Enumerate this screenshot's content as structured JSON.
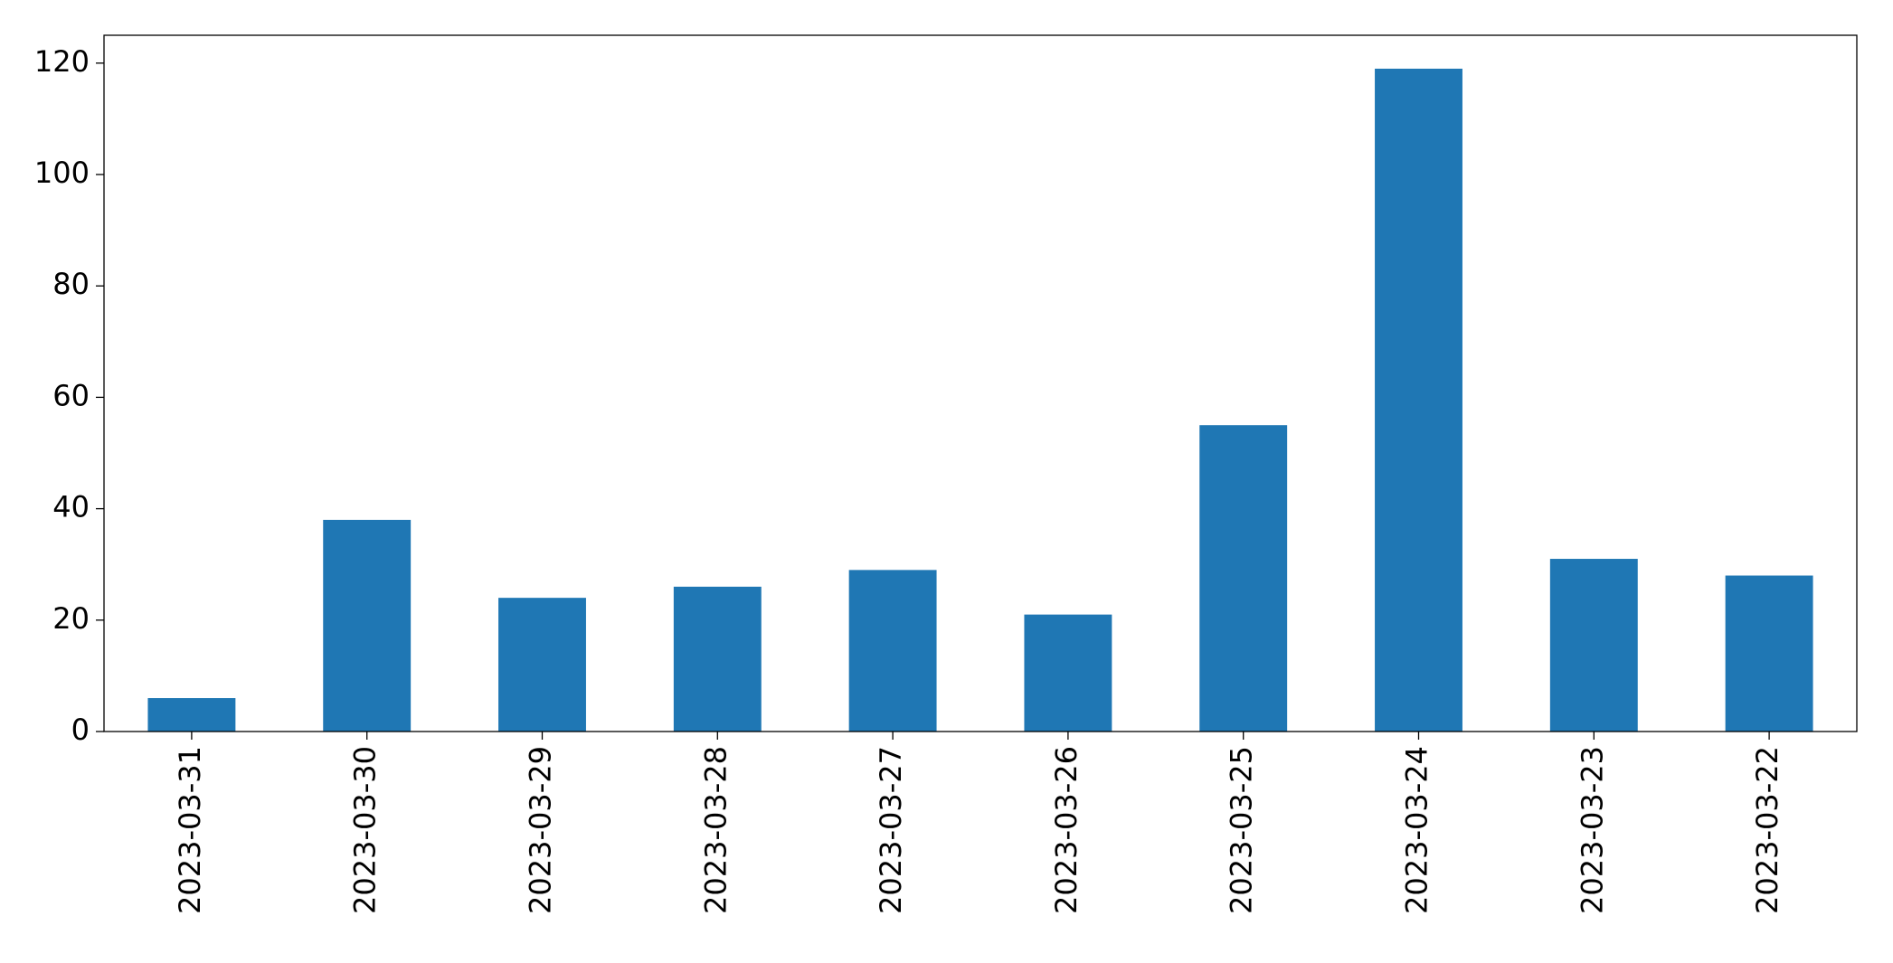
{
  "chart_data": {
    "type": "bar",
    "categories": [
      "2023-03-31",
      "2023-03-30",
      "2023-03-29",
      "2023-03-28",
      "2023-03-27",
      "2023-03-26",
      "2023-03-25",
      "2023-03-24",
      "2023-03-23",
      "2023-03-22"
    ],
    "values": [
      6,
      38,
      24,
      26,
      29,
      21,
      55,
      119,
      31,
      28
    ],
    "color": "#1f77b4",
    "ylim": [
      0,
      125
    ],
    "yticks": [
      0,
      20,
      40,
      60,
      80,
      100,
      120
    ],
    "grid": false
  }
}
